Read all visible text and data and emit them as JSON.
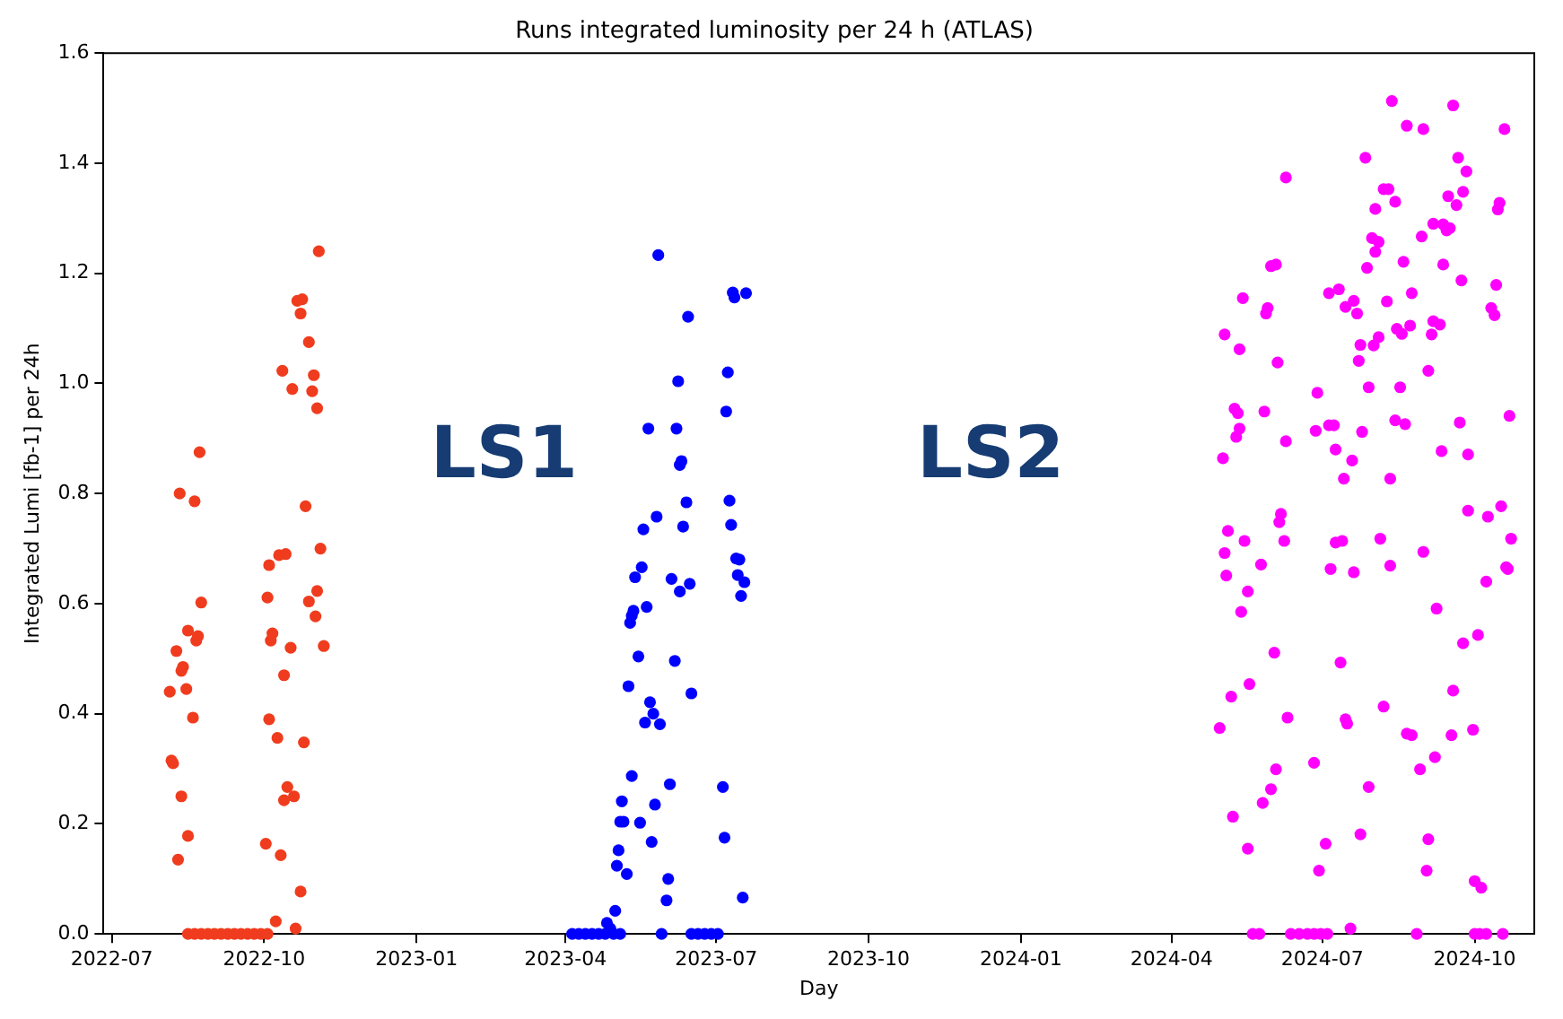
{
  "chart_data": {
    "type": "scatter",
    "title": "Runs integrated luminosity per 24 h (ATLAS)",
    "xlabel": "Day",
    "ylabel": "Integrated Lumi [fb-1] per 24h",
    "xlim": [
      "2022-06-26",
      "2024-11-06"
    ],
    "ylim": [
      0,
      1.6
    ],
    "xticks": [
      "2022-07",
      "2022-10",
      "2023-01",
      "2023-04",
      "2023-07",
      "2023-10",
      "2024-01",
      "2024-04",
      "2024-07",
      "2024-10"
    ],
    "yticks": [
      {
        "value": 0,
        "label": "0.0"
      },
      {
        "value": 0.2,
        "label": "0.2"
      },
      {
        "value": 0.4,
        "label": "0.4"
      },
      {
        "value": 0.6,
        "label": "0.6"
      },
      {
        "value": 0.8,
        "label": "0.8"
      },
      {
        "value": 1,
        "label": "1.0"
      },
      {
        "value": 1.2,
        "label": "1.2"
      },
      {
        "value": 1.4,
        "label": "1.4"
      },
      {
        "value": 1.6,
        "label": "1.6"
      }
    ],
    "grid": false,
    "legend": false,
    "marker": "circle",
    "annotations": [
      "LS1",
      "LS2"
    ],
    "series": [
      {
        "color": "#f03c1e",
        "x": [
          "2022-11-03",
          "2022-10-21",
          "2022-10-24",
          "2022-10-23",
          "2022-10-28",
          "2022-10-12",
          "2022-10-31",
          "2022-10-18",
          "2022-10-30",
          "2022-11-02",
          "2022-08-23",
          "2022-08-11",
          "2022-08-20",
          "2022-10-26",
          "2022-11-04",
          "2022-10-14",
          "2022-10-10",
          "2022-10-04",
          "2022-11-02",
          "2022-10-03",
          "2022-10-28",
          "2022-08-24",
          "2022-11-01",
          "2022-08-16",
          "2022-10-06",
          "2022-08-22",
          "2022-08-21",
          "2022-10-05",
          "2022-11-06",
          "2022-08-09",
          "2022-10-17",
          "2022-08-13",
          "2022-08-12",
          "2022-10-13",
          "2022-08-05",
          "2022-08-15",
          "2022-08-19",
          "2022-10-04",
          "2022-10-09",
          "2022-10-25",
          "2022-08-06",
          "2022-08-07",
          "2022-08-12",
          "2022-10-15",
          "2022-10-13",
          "2022-10-19",
          "2022-08-16",
          "2022-10-02",
          "2022-08-10",
          "2022-10-11",
          "2022-10-23",
          "2022-10-08",
          "2022-10-20",
          "2022-08-16",
          "2022-08-20",
          "2022-08-24",
          "2022-08-28",
          "2022-09-01",
          "2022-09-05",
          "2022-09-09",
          "2022-09-13",
          "2022-09-17",
          "2022-09-21",
          "2022-09-25",
          "2022-09-29",
          "2022-10-03"
        ],
        "values": [
          1.24,
          1.15,
          1.153,
          1.127,
          1.075,
          1.023,
          1.015,
          0.99,
          0.986,
          0.955,
          0.875,
          0.8,
          0.786,
          0.777,
          0.7,
          0.69,
          0.688,
          0.67,
          0.623,
          0.611,
          0.604,
          0.602,
          0.577,
          0.551,
          0.546,
          0.541,
          0.533,
          0.533,
          0.523,
          0.514,
          0.52,
          0.485,
          0.478,
          0.47,
          0.44,
          0.445,
          0.393,
          0.39,
          0.356,
          0.348,
          0.315,
          0.31,
          0.25,
          0.267,
          0.243,
          0.25,
          0.178,
          0.164,
          0.135,
          0.143,
          0.077,
          0.023,
          0.01,
          0,
          0,
          0,
          0,
          0,
          0,
          0,
          0,
          0,
          0,
          0,
          0,
          0
        ]
      },
      {
        "color": "#0000ff",
        "x": [
          "2023-05-27",
          "2023-07-11",
          "2023-07-19",
          "2023-07-12",
          "2023-06-14",
          "2023-06-08",
          "2023-07-08",
          "2023-07-07",
          "2023-05-21",
          "2023-06-07",
          "2023-06-10",
          "2023-06-09",
          "2023-06-13",
          "2023-07-09",
          "2023-05-26",
          "2023-05-18",
          "2023-06-11",
          "2023-07-10",
          "2023-05-17",
          "2023-05-13",
          "2023-07-13",
          "2023-07-15",
          "2023-07-14",
          "2023-07-18",
          "2023-07-16",
          "2023-06-04",
          "2023-06-15",
          "2023-06-09",
          "2023-05-20",
          "2023-05-12",
          "2023-05-11",
          "2023-05-10",
          "2023-05-15",
          "2023-06-06",
          "2023-05-09",
          "2023-06-16",
          "2023-05-22",
          "2023-05-24",
          "2023-05-19",
          "2023-05-28",
          "2023-05-11",
          "2023-06-03",
          "2023-07-05",
          "2023-05-05",
          "2023-05-25",
          "2023-05-04",
          "2023-05-06",
          "2023-05-16",
          "2023-05-23",
          "2023-07-06",
          "2023-05-03",
          "2023-05-02",
          "2023-05-08",
          "2023-06-02",
          "2023-06-01",
          "2023-07-17",
          "2023-05-01",
          "2023-04-26",
          "2023-04-28",
          "2023-04-05",
          "2023-04-09",
          "2023-04-13",
          "2023-04-17",
          "2023-04-21",
          "2023-04-25",
          "2023-04-30",
          "2023-05-04",
          "2023-05-29",
          "2023-06-16",
          "2023-06-20",
          "2023-06-24",
          "2023-06-28",
          "2023-07-02"
        ],
        "values": [
          1.233,
          1.165,
          1.164,
          1.156,
          1.121,
          1.004,
          1.02,
          0.949,
          0.918,
          0.918,
          0.859,
          0.852,
          0.784,
          0.787,
          0.758,
          0.735,
          0.74,
          0.743,
          0.666,
          0.648,
          0.682,
          0.68,
          0.652,
          0.639,
          0.614,
          0.645,
          0.636,
          0.622,
          0.594,
          0.587,
          0.578,
          0.565,
          0.504,
          0.496,
          0.45,
          0.437,
          0.421,
          0.4,
          0.384,
          0.381,
          0.287,
          0.272,
          0.267,
          0.241,
          0.235,
          0.204,
          0.204,
          0.202,
          0.167,
          0.175,
          0.152,
          0.124,
          0.109,
          0.1,
          0.061,
          0.066,
          0.042,
          0.02,
          0.01,
          0,
          0,
          0,
          0,
          0,
          0,
          0,
          0,
          0,
          0,
          0,
          0,
          0,
          0
        ]
      },
      {
        "color": "#ff00ff",
        "x": [
          "2024-08-12",
          "2024-09-18",
          "2024-08-21",
          "2024-08-31",
          "2024-10-19",
          "2024-07-27",
          "2024-09-21",
          "2024-06-09",
          "2024-09-26",
          "2024-08-07",
          "2024-08-10",
          "2024-09-24",
          "2024-09-15",
          "2024-09-20",
          "2024-10-16",
          "2024-10-15",
          "2024-08-14",
          "2024-08-02",
          "2024-09-06",
          "2024-09-12",
          "2024-09-14",
          "2024-09-16",
          "2024-08-30",
          "2024-07-31",
          "2024-08-04",
          "2024-08-02",
          "2024-07-28",
          "2024-08-19",
          "2024-09-12",
          "2024-09-23",
          "2024-10-14",
          "2024-05-31",
          "2024-06-03",
          "2024-07-05",
          "2024-07-11",
          "2024-08-24",
          "2024-05-14",
          "2024-07-15",
          "2024-07-20",
          "2024-07-22",
          "2024-05-29",
          "2024-05-28",
          "2024-08-09",
          "2024-10-11",
          "2024-10-13",
          "2024-05-03",
          "2024-05-12",
          "2024-06-04",
          "2024-07-24",
          "2024-08-01",
          "2024-08-04",
          "2024-08-15",
          "2024-08-18",
          "2024-08-23",
          "2024-09-06",
          "2024-09-10",
          "2024-09-05",
          "2024-07-23",
          "2024-09-03",
          "2024-06-28",
          "2024-07-29",
          "2024-08-17",
          "2024-05-09",
          "2024-05-11",
          "2024-05-27",
          "2024-05-12",
          "2024-05-10",
          "2024-10-22",
          "2024-06-27",
          "2024-07-05",
          "2024-07-08",
          "2024-07-25",
          "2024-08-14",
          "2024-08-20",
          "2024-09-22",
          "2024-06-09",
          "2024-05-02",
          "2024-07-09",
          "2024-07-19",
          "2024-09-11",
          "2024-09-27",
          "2024-07-14",
          "2024-08-11",
          "2024-10-17",
          "2024-09-27",
          "2024-10-09",
          "2024-06-06",
          "2024-06-05",
          "2024-05-05",
          "2024-05-15",
          "2024-06-08",
          "2024-05-03",
          "2024-05-04",
          "2024-05-25",
          "2024-05-17",
          "2024-05-13",
          "2024-07-09",
          "2024-07-13",
          "2024-08-05",
          "2024-10-23",
          "2024-08-31",
          "2024-07-06",
          "2024-07-20",
          "2024-08-11",
          "2024-10-08",
          "2024-10-20",
          "2024-10-21",
          "2024-09-08",
          "2024-10-03",
          "2024-09-24",
          "2024-06-02",
          "2024-07-12",
          "2024-05-18",
          "2024-05-07",
          "2024-09-18",
          "2024-08-07",
          "2024-04-30",
          "2024-06-10",
          "2024-07-15",
          "2024-07-16",
          "2024-08-21",
          "2024-08-24",
          "2024-09-17",
          "2024-09-30",
          "2024-06-26",
          "2024-06-03",
          "2024-05-31",
          "2024-05-26",
          "2024-08-29",
          "2024-09-07",
          "2024-07-29",
          "2024-05-08",
          "2024-05-17",
          "2024-07-03",
          "2024-07-24",
          "2024-09-03",
          "2024-06-29",
          "2024-09-02",
          "2024-10-01",
          "2024-10-05",
          "2024-05-20",
          "2024-05-24",
          "2024-06-12",
          "2024-06-17",
          "2024-06-22",
          "2024-06-26",
          "2024-06-30",
          "2024-07-04",
          "2024-07-18",
          "2024-08-27",
          "2024-10-01",
          "2024-10-04",
          "2024-10-08",
          "2024-10-18"
        ],
        "values": [
          1.513,
          1.505,
          1.468,
          1.462,
          1.462,
          1.41,
          1.41,
          1.374,
          1.385,
          1.353,
          1.353,
          1.348,
          1.34,
          1.324,
          1.328,
          1.316,
          1.33,
          1.317,
          1.29,
          1.289,
          1.278,
          1.282,
          1.267,
          1.264,
          1.257,
          1.239,
          1.21,
          1.221,
          1.216,
          1.187,
          1.179,
          1.213,
          1.216,
          1.164,
          1.171,
          1.164,
          1.155,
          1.139,
          1.15,
          1.127,
          1.137,
          1.127,
          1.149,
          1.137,
          1.124,
          1.089,
          1.062,
          1.038,
          1.07,
          1.069,
          1.084,
          1.099,
          1.09,
          1.105,
          1.113,
          1.107,
          1.089,
          1.041,
          1.023,
          0.983,
          0.993,
          0.993,
          0.954,
          0.946,
          0.949,
          0.918,
          0.903,
          0.941,
          0.914,
          0.924,
          0.924,
          0.912,
          0.933,
          0.926,
          0.929,
          0.895,
          0.864,
          0.88,
          0.86,
          0.877,
          0.871,
          0.827,
          0.827,
          0.777,
          0.769,
          0.758,
          0.763,
          0.748,
          0.732,
          0.714,
          0.714,
          0.692,
          0.651,
          0.671,
          0.622,
          0.585,
          0.711,
          0.714,
          0.718,
          0.718,
          0.694,
          0.663,
          0.657,
          0.669,
          0.64,
          0.666,
          0.663,
          0.591,
          0.543,
          0.528,
          0.511,
          0.493,
          0.454,
          0.431,
          0.442,
          0.413,
          0.374,
          0.393,
          0.39,
          0.382,
          0.364,
          0.361,
          0.361,
          0.371,
          0.311,
          0.299,
          0.263,
          0.238,
          0.299,
          0.321,
          0.267,
          0.213,
          0.155,
          0.164,
          0.181,
          0.172,
          0.115,
          0.115,
          0.096,
          0.084,
          0,
          0,
          0,
          0,
          0,
          0,
          0,
          0,
          0.01,
          0,
          0,
          0,
          0,
          0
        ]
      }
    ]
  }
}
